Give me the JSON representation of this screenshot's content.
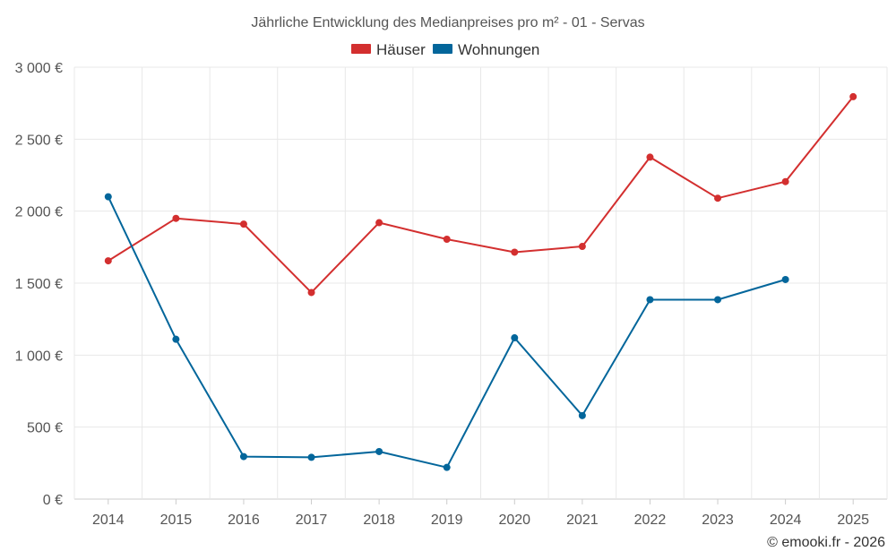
{
  "chart_data": {
    "type": "line",
    "title": "Jährliche Entwicklung des Medianpreises pro m² - 01 - Servas",
    "categories": [
      "2014",
      "2015",
      "2016",
      "2017",
      "2018",
      "2019",
      "2020",
      "2021",
      "2022",
      "2023",
      "2024",
      "2025"
    ],
    "series": [
      {
        "name": "Häuser",
        "color": "#d32f2f",
        "values": [
          1655,
          1950,
          1910,
          1435,
          1920,
          1805,
          1715,
          1755,
          2375,
          2090,
          2205,
          2795
        ]
      },
      {
        "name": "Wohnungen",
        "color": "#03669b",
        "values": [
          2100,
          1110,
          295,
          290,
          330,
          220,
          1120,
          580,
          1385,
          1385,
          1525,
          null
        ]
      }
    ],
    "ylim": [
      0,
      3000
    ],
    "yticks": [
      0,
      500,
      1000,
      1500,
      2000,
      2500,
      3000
    ],
    "ytick_labels": [
      "0 €",
      "500 €",
      "1 000 €",
      "1 500 €",
      "2 000 €",
      "2 500 €",
      "3 000 €"
    ],
    "grid": true,
    "legend_position": "top-center"
  },
  "footer": "© emooki.fr - 2026"
}
